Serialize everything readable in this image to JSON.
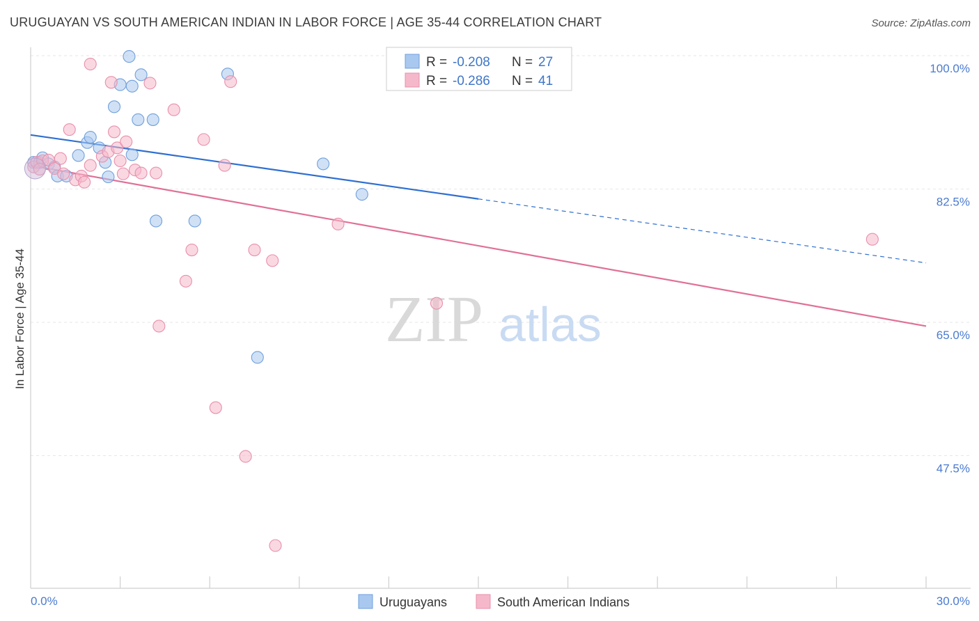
{
  "title": "URUGUAYAN VS SOUTH AMERICAN INDIAN IN LABOR FORCE | AGE 35-44 CORRELATION CHART",
  "source": "Source: ZipAtlas.com",
  "watermark": {
    "zip": "ZIP",
    "atlas": "atlas"
  },
  "chart_data": {
    "type": "scatter",
    "ylabel": "In Labor Force | Age 35-44",
    "xlim": [
      0,
      30
    ],
    "ylim": [
      30,
      102
    ],
    "x_tick_labels": [
      "0.0%",
      "30.0%"
    ],
    "y_ticks": [
      {
        "value": 100.0,
        "label": "100.0%"
      },
      {
        "value": 82.5,
        "label": "82.5%"
      },
      {
        "value": 65.0,
        "label": "65.0%"
      },
      {
        "value": 47.5,
        "label": "47.5%"
      }
    ],
    "legend": {
      "rows": [
        {
          "r_label": "R =",
          "r_value": "-0.208",
          "n_label": "N =",
          "n_value": "27",
          "color": "#a9c8ef"
        },
        {
          "r_label": "R =",
          "r_value": "-0.286",
          "n_label": "N =",
          "n_value": "41",
          "color": "#f5b8cb"
        }
      ]
    },
    "series": [
      {
        "name": "Uruguayans",
        "color": "#a9c8ef",
        "stroke": "#6f9fdc",
        "line_color": "#2f6fd0",
        "trend": {
          "x0": 0,
          "y0": 89.6,
          "x1": 15.0,
          "y1": 81.2,
          "dash_to_x": 30,
          "dash_to_y": 72.8
        },
        "points": [
          [
            0.1,
            86.0
          ],
          [
            0.3,
            86.0
          ],
          [
            0.4,
            86.6
          ],
          [
            0.6,
            85.8
          ],
          [
            0.8,
            85.4
          ],
          [
            0.9,
            84.2
          ],
          [
            1.2,
            84.2
          ],
          [
            1.6,
            86.9
          ],
          [
            1.9,
            88.6
          ],
          [
            2.0,
            89.3
          ],
          [
            2.3,
            87.9
          ],
          [
            2.5,
            86.0
          ],
          [
            2.6,
            84.1
          ],
          [
            2.8,
            93.3
          ],
          [
            3.0,
            96.2
          ],
          [
            3.4,
            96.0
          ],
          [
            3.6,
            91.6
          ],
          [
            3.7,
            97.5
          ],
          [
            3.3,
            99.9
          ],
          [
            4.2,
            78.3
          ],
          [
            5.5,
            78.3
          ],
          [
            6.6,
            97.6
          ],
          [
            7.6,
            60.4
          ],
          [
            9.8,
            85.8
          ],
          [
            11.1,
            81.8
          ],
          [
            4.1,
            91.6
          ],
          [
            3.4,
            87.0
          ]
        ]
      },
      {
        "name": "South American Indians",
        "color": "#f5b8cb",
        "stroke": "#e88fab",
        "line_color": "#e07098",
        "trend": {
          "x0": 0,
          "y0": 85.6,
          "x1": 30,
          "y1": 64.5
        },
        "points": [
          [
            0.1,
            85.4
          ],
          [
            0.2,
            86.0
          ],
          [
            0.4,
            86.2
          ],
          [
            0.6,
            86.3
          ],
          [
            0.8,
            85.2
          ],
          [
            1.0,
            86.5
          ],
          [
            1.1,
            84.5
          ],
          [
            1.3,
            90.3
          ],
          [
            1.5,
            83.7
          ],
          [
            1.7,
            84.2
          ],
          [
            1.8,
            83.4
          ],
          [
            2.0,
            85.6
          ],
          [
            2.4,
            86.8
          ],
          [
            2.6,
            87.4
          ],
          [
            2.7,
            96.5
          ],
          [
            2.8,
            90.0
          ],
          [
            2.9,
            87.9
          ],
          [
            3.0,
            86.2
          ],
          [
            3.1,
            84.5
          ],
          [
            3.2,
            88.7
          ],
          [
            3.5,
            85.0
          ],
          [
            4.0,
            96.4
          ],
          [
            4.3,
            64.5
          ],
          [
            4.8,
            92.9
          ],
          [
            5.2,
            70.4
          ],
          [
            5.4,
            74.5
          ],
          [
            5.8,
            89.0
          ],
          [
            6.2,
            53.8
          ],
          [
            6.5,
            85.6
          ],
          [
            6.7,
            96.6
          ],
          [
            7.2,
            47.4
          ],
          [
            7.5,
            74.5
          ],
          [
            8.1,
            73.1
          ],
          [
            8.2,
            35.7
          ],
          [
            10.3,
            77.9
          ],
          [
            13.6,
            67.5
          ],
          [
            28.2,
            75.9
          ],
          [
            2.0,
            98.9
          ],
          [
            3.7,
            84.6
          ],
          [
            4.2,
            84.6
          ],
          [
            0.3,
            85.1
          ]
        ]
      }
    ],
    "bottom_legend": [
      "Uruguayans",
      "South American Indians"
    ]
  }
}
